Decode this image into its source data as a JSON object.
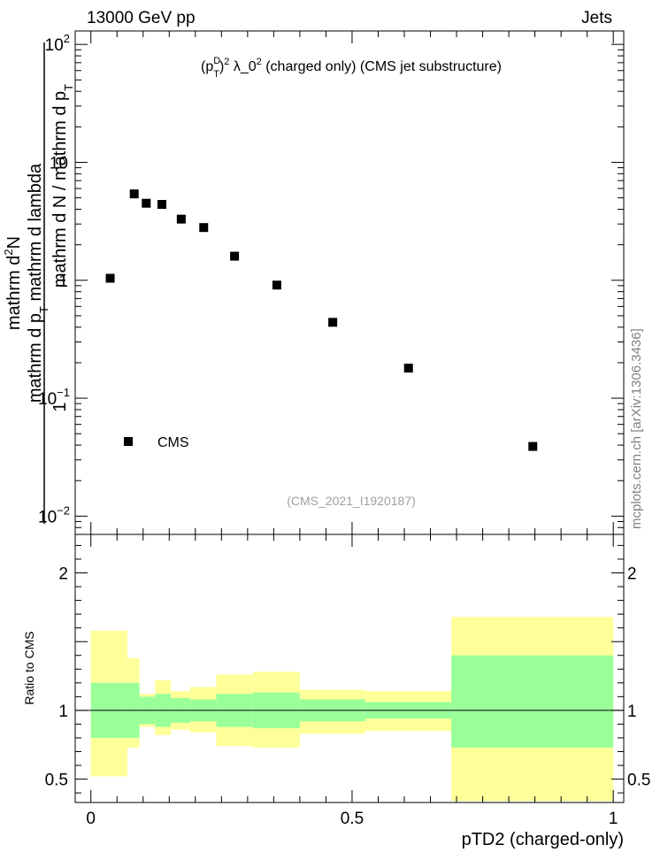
{
  "header": {
    "left": "13000 GeV pp",
    "right": "Jets"
  },
  "side_label": "mcplots.cern.ch [arXiv:1306.3436]",
  "chart_data": [
    {
      "type": "scatter",
      "title_parts": {
        "p": "(p",
        "sup": "D",
        "sub": "T",
        "close": ")",
        "exp": "2",
        "lambda": " λ_0",
        "lambda_exp": "2",
        "rest": " (charged only) (CMS jet substructure)"
      },
      "ylabel_parts": {
        "one": "1",
        "denominator": "mathrm d N / mathrm d p",
        "denominator_sub": "T",
        "numerator": "mathrm d",
        "numerator_sup": "2",
        "numerator_rest": "N",
        "numerator_line2": "mathrm d p",
        "numerator_line2_sub": "T",
        "numerator_line2_rest": " mathrm d lambda"
      },
      "yscale": "log",
      "ylim": [
        0.007,
        130
      ],
      "xlim": [
        -0.03,
        1.02
      ],
      "ytick_labels": [
        {
          "value": 100,
          "base": "10",
          "exp": "2"
        },
        {
          "value": 10,
          "base": "10",
          "exp": ""
        },
        {
          "value": 1,
          "base": "1",
          "exp": ""
        },
        {
          "value": 0.1,
          "base": "10",
          "exp": "−1"
        },
        {
          "value": 0.01,
          "base": "10",
          "exp": "−2"
        }
      ],
      "series": [
        {
          "name": "CMS",
          "x": [
            0.037,
            0.083,
            0.106,
            0.136,
            0.173,
            0.216,
            0.275,
            0.356,
            0.463,
            0.608,
            0.846
          ],
          "y": [
            1.04,
            5.4,
            4.5,
            4.4,
            3.3,
            2.8,
            1.6,
            0.91,
            0.44,
            0.18,
            0.039
          ]
        }
      ],
      "legend": {
        "position": "bottom-left",
        "entries": [
          "CMS"
        ]
      },
      "watermark": "(CMS_2021_I1920187)"
    },
    {
      "type": "area",
      "ylabel": "Ratio to CMS",
      "xlabel": "pTD2 (charged-only)",
      "ylim": [
        0.33,
        2.28
      ],
      "xlim": [
        -0.03,
        1.02
      ],
      "yticks": [
        {
          "value": 0.5,
          "label": "0.5"
        },
        {
          "value": 1,
          "label": "1"
        },
        {
          "value": 2,
          "label": "2"
        }
      ],
      "xticks": [
        {
          "value": 0,
          "label": "0"
        },
        {
          "value": 0.5,
          "label": "0.5"
        },
        {
          "value": 1,
          "label": "1"
        }
      ],
      "bin_edges": [
        0,
        0.07,
        0.093,
        0.123,
        0.153,
        0.19,
        0.24,
        0.31,
        0.4,
        0.525,
        0.69,
        1.0
      ],
      "bands": {
        "inner_color": "#99ff99",
        "outer_color": "#ffff99",
        "inner_lo": [
          0.8,
          0.8,
          0.9,
          0.88,
          0.91,
          0.92,
          0.88,
          0.87,
          0.92,
          0.94,
          0.73
        ],
        "inner_hi": [
          1.2,
          1.2,
          1.1,
          1.12,
          1.09,
          1.08,
          1.12,
          1.13,
          1.08,
          1.06,
          1.4
        ],
        "outer_lo": [
          0.52,
          0.73,
          0.88,
          0.82,
          0.86,
          0.84,
          0.74,
          0.73,
          0.83,
          0.85,
          0.34
        ],
        "outer_hi": [
          1.58,
          1.38,
          1.12,
          1.22,
          1.14,
          1.17,
          1.26,
          1.28,
          1.15,
          1.14,
          1.68
        ]
      },
      "reference_line": 1
    }
  ]
}
